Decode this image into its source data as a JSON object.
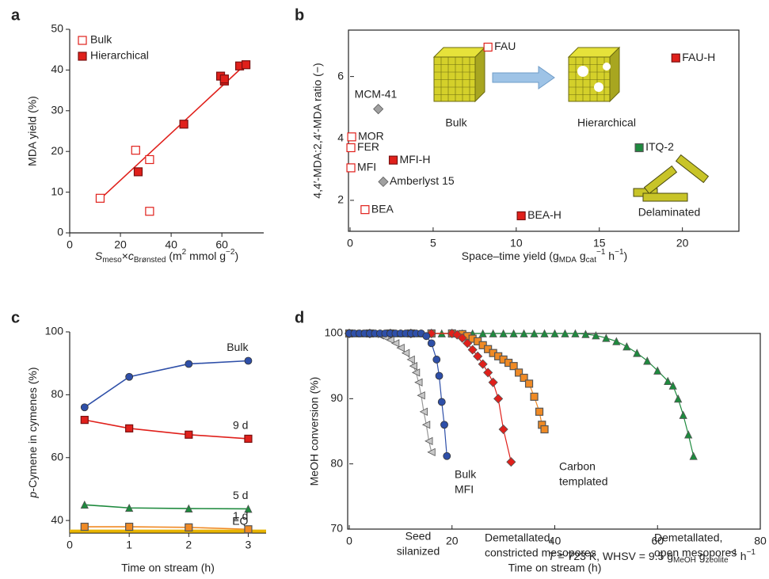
{
  "chart_data": [
    {
      "type": "scatter",
      "panel": "a",
      "ylabel": "MDA yield (%)",
      "xlabel": [
        "S",
        "meso",
        "×",
        "c",
        "Brønsted",
        " (m",
        "2",
        " mmol g",
        "−2",
        ")"
      ],
      "xlim": [
        0,
        76.5
      ],
      "ylim": [
        0,
        50
      ],
      "xticks": [
        0,
        20,
        40,
        60
      ],
      "yticks": [
        0,
        10,
        20,
        30,
        40,
        50
      ],
      "legend": "upper left",
      "series": [
        {
          "name": "Bulk",
          "color": "#e0201b",
          "marker": "open-square",
          "x": [
            12,
            26,
            31.5,
            31.5
          ],
          "y": [
            8.5,
            20.3,
            18,
            5.3
          ]
        },
        {
          "name": "Hierarchical",
          "color": "#e0201b",
          "marker": "square",
          "x": [
            27,
            45,
            59.5,
            61,
            61,
            67,
            69.5
          ],
          "y": [
            15,
            26.7,
            38.5,
            37.3,
            37.8,
            41,
            41.3
          ]
        }
      ],
      "fit": {
        "color": "#e0201b",
        "x": [
          12,
          70
        ],
        "y": [
          8.3,
          41.8
        ]
      }
    },
    {
      "type": "labeled-scatter",
      "panel": "b",
      "ylabel": "4,4′-MDA:2,4′-MDA ratio (−)",
      "xlabel": [
        "Space–time yield (g",
        "MDA",
        " g",
        "cat",
        "−1",
        " h",
        "−1",
        ")"
      ],
      "xlim": [
        0,
        23.4
      ],
      "ylim": [
        1,
        7.5
      ],
      "xticks": [
        0,
        5,
        10,
        15,
        20
      ],
      "yticks": [
        2,
        4,
        6
      ],
      "points": [
        {
          "label": "FAU",
          "x": 8.3,
          "y": 6.95,
          "color": "#e0201b",
          "marker": "open-square"
        },
        {
          "label": "FAU-H",
          "x": 19.6,
          "y": 6.6,
          "color": "#e0201b",
          "marker": "square"
        },
        {
          "label": "MCM-41",
          "x": 1.7,
          "y": 4.95,
          "color": "#a0a0a0",
          "marker": "diamond"
        },
        {
          "label": "MOR",
          "x": 0.1,
          "y": 4.05,
          "color": "#e0201b",
          "marker": "open-square"
        },
        {
          "label": "FER",
          "x": 0.05,
          "y": 3.7,
          "color": "#e0201b",
          "marker": "open-square"
        },
        {
          "label": "MFI",
          "x": 0.05,
          "y": 3.05,
          "color": "#e0201b",
          "marker": "open-square"
        },
        {
          "label": "MFI-H",
          "x": 2.6,
          "y": 3.3,
          "color": "#e0201b",
          "marker": "square"
        },
        {
          "label": "Amberlyst 15",
          "x": 2,
          "y": 2.6,
          "color": "#a0a0a0",
          "marker": "diamond"
        },
        {
          "label": "BEA",
          "x": 0.9,
          "y": 1.7,
          "color": "#e0201b",
          "marker": "open-square"
        },
        {
          "label": "BEA-H",
          "x": 10.3,
          "y": 1.5,
          "color": "#e0201b",
          "marker": "square"
        },
        {
          "label": "ITQ-2",
          "x": 17.4,
          "y": 3.7,
          "color": "#1e8a3e",
          "marker": "square"
        }
      ],
      "annotations": [
        "Bulk",
        "Hierarchical",
        "Delaminated"
      ]
    },
    {
      "type": "line",
      "panel": "c",
      "ylabel": [
        "p",
        "-Cymene in cymenes (%)"
      ],
      "xlabel": "Time on stream (h)",
      "xlim": [
        0,
        3.3
      ],
      "ylim": [
        36,
        100
      ],
      "xticks": [
        0,
        1,
        2,
        3
      ],
      "yticks": [
        40,
        60,
        80,
        100
      ],
      "x": [
        0.25,
        1,
        2,
        3
      ],
      "series": [
        {
          "name": "Bulk",
          "color": "#2e4fa8",
          "marker": "circle",
          "values": [
            76,
            85.7,
            89.8,
            90.8
          ]
        },
        {
          "name": "9 d",
          "color": "#e0201b",
          "marker": "square",
          "values": [
            72,
            69.3,
            67.3,
            66
          ]
        },
        {
          "name": "5 d",
          "color": "#1e8a3e",
          "marker": "triangle",
          "values": [
            45,
            44,
            43.8,
            43.7
          ]
        },
        {
          "name": "1 d",
          "color": "#f08a24",
          "marker": "square",
          "values": [
            38,
            38,
            37.8,
            37.2
          ]
        }
      ],
      "eq": {
        "label": "EQ",
        "value": 36.6,
        "color": "#e8b400"
      }
    },
    {
      "type": "multi-line",
      "panel": "d",
      "ylabel": "MeOH conversion (%)",
      "xlabel": "Time on stream (h)",
      "xlim": [
        0,
        80
      ],
      "ylim": [
        70,
        100
      ],
      "xticks": [
        0,
        20,
        40,
        60,
        80
      ],
      "yticks": [
        70,
        80,
        90,
        100
      ],
      "annotation": [
        "T",
        " = 723 K, WHSV = 9.5 g",
        "MeOH",
        " g",
        "zeolite",
        "−1",
        " h",
        "−1"
      ],
      "series": [
        {
          "name": [
            "Demetallated,",
            "open mesopores"
          ],
          "color": "#1e8a3e",
          "marker": "triangle",
          "x": [
            0,
            2,
            4,
            6,
            8,
            10,
            12,
            14,
            16,
            18,
            20,
            22,
            24,
            26,
            28,
            30,
            32,
            34,
            36,
            38,
            40,
            42,
            44,
            46,
            48,
            50,
            52,
            54,
            56,
            58,
            60,
            62,
            63,
            64,
            65,
            66,
            67
          ],
          "y": [
            100,
            100,
            100,
            100,
            100,
            100,
            100,
            100,
            100,
            100,
            100,
            100,
            100,
            100,
            100,
            100,
            100,
            100,
            100,
            100,
            100,
            100,
            100,
            99.9,
            99.7,
            99.3,
            98.8,
            98,
            97,
            95.8,
            94.3,
            92.7,
            92,
            90,
            87.5,
            84.5,
            81.2
          ]
        },
        {
          "name": [
            "Carbon",
            "templated"
          ],
          "color": "#f08a24",
          "marker": "square",
          "x": [
            0,
            4,
            8,
            12,
            16,
            20,
            22,
            23,
            24,
            25,
            26,
            27,
            28,
            29,
            30,
            31,
            32,
            33,
            34,
            35,
            36,
            37,
            37.5,
            38
          ],
          "y": [
            100,
            100,
            100,
            100,
            100,
            100,
            99.9,
            99.6,
            99.2,
            98.8,
            98.2,
            97.6,
            97,
            96.5,
            96,
            95.5,
            95,
            94,
            93.2,
            92.3,
            90.3,
            88,
            86,
            85.3
          ]
        },
        {
          "name": [
            "Demetallated,",
            "constricted mesopores"
          ],
          "color": "#e0201b",
          "marker": "diamond",
          "x": [
            0,
            4,
            8,
            12,
            16,
            20,
            21,
            22,
            23,
            24,
            25,
            26,
            27,
            28,
            29,
            30,
            31.5
          ],
          "y": [
            100,
            100,
            100,
            100,
            100,
            100,
            99.8,
            99.3,
            98.5,
            97.5,
            96.5,
            95.3,
            94,
            92.5,
            90,
            85.3,
            80.3
          ]
        },
        {
          "name": [
            "Seed",
            "silanized"
          ],
          "color": "#c8c8c8",
          "marker": "triangle-left",
          "x": [
            0,
            1,
            2,
            3,
            4,
            5,
            6,
            7,
            8,
            9,
            10,
            11,
            12,
            12.5,
            13,
            13.5,
            14,
            14.5,
            15,
            15.5,
            16
          ],
          "y": [
            100,
            100,
            100,
            100,
            100,
            99.9,
            99.7,
            99.4,
            99,
            98.5,
            97.8,
            97,
            96,
            95,
            94,
            92.5,
            90.5,
            88,
            86,
            83.5,
            81.8
          ]
        },
        {
          "name": [
            "Bulk",
            "MFI"
          ],
          "color": "#2e4fa8",
          "marker": "circle",
          "x": [
            0,
            1,
            2,
            3,
            4,
            5,
            6,
            7,
            8,
            9,
            10,
            11,
            12,
            13,
            14,
            15,
            16,
            17,
            17.5,
            18,
            18.5,
            19
          ],
          "y": [
            100,
            100,
            100,
            100,
            100,
            100,
            100,
            100,
            100,
            100,
            100,
            100,
            100,
            100,
            100,
            99.6,
            98.5,
            96,
            93.5,
            89.5,
            86,
            81.2
          ]
        }
      ]
    }
  ]
}
